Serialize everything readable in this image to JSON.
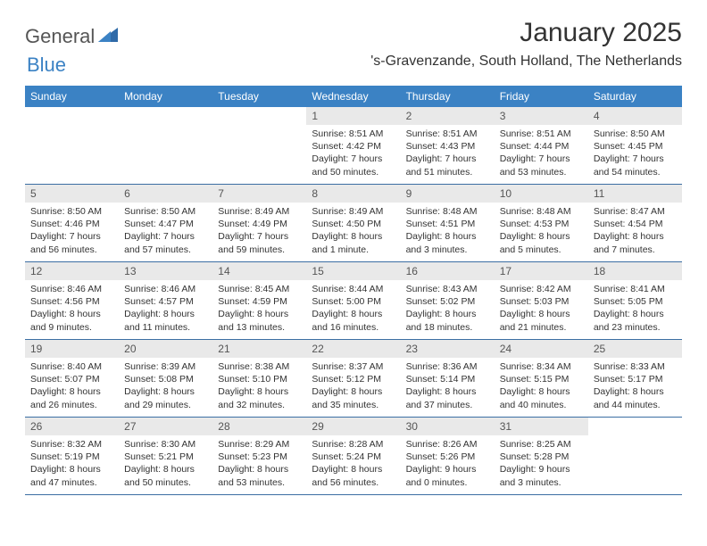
{
  "logo": {
    "part1": "General",
    "part2": "Blue"
  },
  "title": "January 2025",
  "location": "'s-Gravenzande, South Holland, The Netherlands",
  "header_bg": "#3b82c4",
  "header_fg": "#ffffff",
  "daynum_bg": "#e9e9e9",
  "row_border": "#3b6ea3",
  "dayNames": [
    "Sunday",
    "Monday",
    "Tuesday",
    "Wednesday",
    "Thursday",
    "Friday",
    "Saturday"
  ],
  "weeks": [
    [
      {
        "empty": true
      },
      {
        "empty": true
      },
      {
        "empty": true
      },
      {
        "n": "1",
        "sunrise": "8:51 AM",
        "sunset": "4:42 PM",
        "dl1": "Daylight: 7 hours",
        "dl2": "and 50 minutes."
      },
      {
        "n": "2",
        "sunrise": "8:51 AM",
        "sunset": "4:43 PM",
        "dl1": "Daylight: 7 hours",
        "dl2": "and 51 minutes."
      },
      {
        "n": "3",
        "sunrise": "8:51 AM",
        "sunset": "4:44 PM",
        "dl1": "Daylight: 7 hours",
        "dl2": "and 53 minutes."
      },
      {
        "n": "4",
        "sunrise": "8:50 AM",
        "sunset": "4:45 PM",
        "dl1": "Daylight: 7 hours",
        "dl2": "and 54 minutes."
      }
    ],
    [
      {
        "n": "5",
        "sunrise": "8:50 AM",
        "sunset": "4:46 PM",
        "dl1": "Daylight: 7 hours",
        "dl2": "and 56 minutes."
      },
      {
        "n": "6",
        "sunrise": "8:50 AM",
        "sunset": "4:47 PM",
        "dl1": "Daylight: 7 hours",
        "dl2": "and 57 minutes."
      },
      {
        "n": "7",
        "sunrise": "8:49 AM",
        "sunset": "4:49 PM",
        "dl1": "Daylight: 7 hours",
        "dl2": "and 59 minutes."
      },
      {
        "n": "8",
        "sunrise": "8:49 AM",
        "sunset": "4:50 PM",
        "dl1": "Daylight: 8 hours",
        "dl2": "and 1 minute."
      },
      {
        "n": "9",
        "sunrise": "8:48 AM",
        "sunset": "4:51 PM",
        "dl1": "Daylight: 8 hours",
        "dl2": "and 3 minutes."
      },
      {
        "n": "10",
        "sunrise": "8:48 AM",
        "sunset": "4:53 PM",
        "dl1": "Daylight: 8 hours",
        "dl2": "and 5 minutes."
      },
      {
        "n": "11",
        "sunrise": "8:47 AM",
        "sunset": "4:54 PM",
        "dl1": "Daylight: 8 hours",
        "dl2": "and 7 minutes."
      }
    ],
    [
      {
        "n": "12",
        "sunrise": "8:46 AM",
        "sunset": "4:56 PM",
        "dl1": "Daylight: 8 hours",
        "dl2": "and 9 minutes."
      },
      {
        "n": "13",
        "sunrise": "8:46 AM",
        "sunset": "4:57 PM",
        "dl1": "Daylight: 8 hours",
        "dl2": "and 11 minutes."
      },
      {
        "n": "14",
        "sunrise": "8:45 AM",
        "sunset": "4:59 PM",
        "dl1": "Daylight: 8 hours",
        "dl2": "and 13 minutes."
      },
      {
        "n": "15",
        "sunrise": "8:44 AM",
        "sunset": "5:00 PM",
        "dl1": "Daylight: 8 hours",
        "dl2": "and 16 minutes."
      },
      {
        "n": "16",
        "sunrise": "8:43 AM",
        "sunset": "5:02 PM",
        "dl1": "Daylight: 8 hours",
        "dl2": "and 18 minutes."
      },
      {
        "n": "17",
        "sunrise": "8:42 AM",
        "sunset": "5:03 PM",
        "dl1": "Daylight: 8 hours",
        "dl2": "and 21 minutes."
      },
      {
        "n": "18",
        "sunrise": "8:41 AM",
        "sunset": "5:05 PM",
        "dl1": "Daylight: 8 hours",
        "dl2": "and 23 minutes."
      }
    ],
    [
      {
        "n": "19",
        "sunrise": "8:40 AM",
        "sunset": "5:07 PM",
        "dl1": "Daylight: 8 hours",
        "dl2": "and 26 minutes."
      },
      {
        "n": "20",
        "sunrise": "8:39 AM",
        "sunset": "5:08 PM",
        "dl1": "Daylight: 8 hours",
        "dl2": "and 29 minutes."
      },
      {
        "n": "21",
        "sunrise": "8:38 AM",
        "sunset": "5:10 PM",
        "dl1": "Daylight: 8 hours",
        "dl2": "and 32 minutes."
      },
      {
        "n": "22",
        "sunrise": "8:37 AM",
        "sunset": "5:12 PM",
        "dl1": "Daylight: 8 hours",
        "dl2": "and 35 minutes."
      },
      {
        "n": "23",
        "sunrise": "8:36 AM",
        "sunset": "5:14 PM",
        "dl1": "Daylight: 8 hours",
        "dl2": "and 37 minutes."
      },
      {
        "n": "24",
        "sunrise": "8:34 AM",
        "sunset": "5:15 PM",
        "dl1": "Daylight: 8 hours",
        "dl2": "and 40 minutes."
      },
      {
        "n": "25",
        "sunrise": "8:33 AM",
        "sunset": "5:17 PM",
        "dl1": "Daylight: 8 hours",
        "dl2": "and 44 minutes."
      }
    ],
    [
      {
        "n": "26",
        "sunrise": "8:32 AM",
        "sunset": "5:19 PM",
        "dl1": "Daylight: 8 hours",
        "dl2": "and 47 minutes."
      },
      {
        "n": "27",
        "sunrise": "8:30 AM",
        "sunset": "5:21 PM",
        "dl1": "Daylight: 8 hours",
        "dl2": "and 50 minutes."
      },
      {
        "n": "28",
        "sunrise": "8:29 AM",
        "sunset": "5:23 PM",
        "dl1": "Daylight: 8 hours",
        "dl2": "and 53 minutes."
      },
      {
        "n": "29",
        "sunrise": "8:28 AM",
        "sunset": "5:24 PM",
        "dl1": "Daylight: 8 hours",
        "dl2": "and 56 minutes."
      },
      {
        "n": "30",
        "sunrise": "8:26 AM",
        "sunset": "5:26 PM",
        "dl1": "Daylight: 9 hours",
        "dl2": "and 0 minutes."
      },
      {
        "n": "31",
        "sunrise": "8:25 AM",
        "sunset": "5:28 PM",
        "dl1": "Daylight: 9 hours",
        "dl2": "and 3 minutes."
      },
      {
        "empty": true
      }
    ]
  ],
  "labels": {
    "sunrise": "Sunrise: ",
    "sunset": "Sunset: "
  }
}
